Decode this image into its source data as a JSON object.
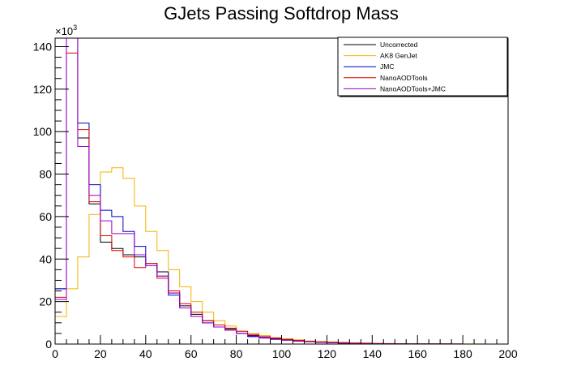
{
  "chart_data": {
    "type": "line",
    "title": "GJets Passing Softdrop Mass",
    "xlabel": "",
    "ylabel": "",
    "y_exponent_label": "×10",
    "y_exponent_power": "3",
    "xlim": [
      0,
      200
    ],
    "ylim": [
      0,
      144
    ],
    "x_ticks": [
      0,
      20,
      40,
      60,
      80,
      100,
      120,
      140,
      160,
      180,
      200
    ],
    "y_ticks": [
      0,
      20,
      40,
      60,
      80,
      100,
      120,
      140
    ],
    "legend_placement": "top-right",
    "bin_edges": [
      0,
      5,
      10,
      15,
      20,
      25,
      30,
      35,
      40,
      45,
      50,
      55,
      60,
      65,
      70,
      75,
      80,
      85,
      90,
      95,
      100,
      105,
      110,
      115,
      120,
      125,
      130,
      135,
      140,
      145,
      150,
      155,
      160,
      165,
      170,
      175,
      180,
      185,
      190,
      195,
      200
    ],
    "series": [
      {
        "name": "Uncorrected",
        "color": "#000000",
        "values": [
          26,
          170,
          97,
          66,
          48,
          45,
          42,
          41,
          38,
          34,
          24,
          18,
          14,
          11,
          9,
          7,
          5,
          4,
          3,
          2.5,
          2,
          1.5,
          1.2,
          0.9,
          0.7,
          0.5,
          0.4,
          0.3,
          0.2,
          0.15,
          0.1,
          0.08,
          0.06,
          0.05,
          0.04,
          0.03,
          0.02,
          0.02,
          0.01,
          0.01
        ]
      },
      {
        "name": "AK8 GenJet",
        "color": "#f0b400",
        "values": [
          13,
          26,
          41,
          61,
          81,
          83,
          78,
          65,
          53,
          44,
          35,
          27,
          20,
          15,
          11,
          8.5,
          6,
          5,
          4,
          3,
          2.5,
          2,
          1.5,
          1.2,
          1,
          0.8,
          0.6,
          0.5,
          0.4,
          0.3,
          0.2,
          0.15,
          0.1,
          0.08,
          0.06,
          0.05,
          0.04,
          0.03,
          0.02,
          0.02
        ]
      },
      {
        "name": "JMC",
        "color": "#0000cc",
        "values": [
          26,
          145,
          104,
          75,
          63,
          60,
          53,
          46,
          37,
          32,
          23,
          17,
          13,
          10,
          8,
          6.5,
          5,
          3.5,
          2.8,
          2.2,
          1.8,
          1.4,
          1.1,
          0.8,
          0.6,
          0.45,
          0.35,
          0.25,
          0.18,
          0.12,
          0.08,
          0.06,
          0.05,
          0.04,
          0.03,
          0.02,
          0.02,
          0.01,
          0.01,
          0.01
        ]
      },
      {
        "name": "NanoAODTools",
        "color": "#dd0000",
        "values": [
          22,
          137,
          101,
          67,
          51,
          44,
          41,
          36,
          38,
          31,
          25,
          19,
          15,
          11,
          9,
          7.5,
          6,
          4.5,
          3.5,
          2.8,
          2.2,
          1.7,
          1.3,
          1,
          0.8,
          0.6,
          0.45,
          0.35,
          0.25,
          0.18,
          0.12,
          0.09,
          0.07,
          0.05,
          0.04,
          0.03,
          0.02,
          0.02,
          0.01,
          0.01
        ]
      },
      {
        "name": "NanoAODTools+JMC",
        "color": "#9900cc",
        "values": [
          21,
          150,
          93,
          70,
          58,
          52,
          52,
          42,
          37,
          32,
          24,
          17,
          13,
          10,
          8,
          6.5,
          5,
          3.8,
          3,
          2.3,
          1.8,
          1.4,
          1.1,
          0.8,
          0.6,
          0.45,
          0.35,
          0.25,
          0.18,
          0.12,
          0.08,
          0.06,
          0.05,
          0.04,
          0.03,
          0.02,
          0.02,
          0.01,
          0.01,
          0.01
        ]
      }
    ]
  }
}
